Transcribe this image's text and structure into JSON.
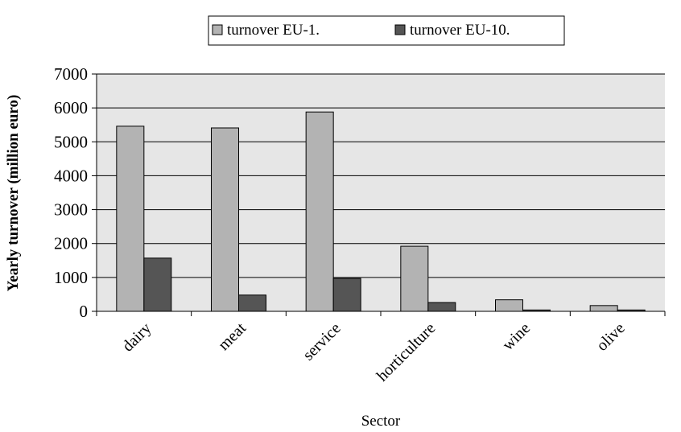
{
  "chart_data": {
    "type": "bar",
    "title": "",
    "xlabel": "Sector",
    "ylabel": "Yearly turnover (million euro)",
    "categories": [
      "dairy",
      "meat",
      "service",
      "horticulture",
      "wine",
      "olive"
    ],
    "ylim": [
      0,
      7000
    ],
    "yticks": [
      0,
      1000,
      2000,
      3000,
      4000,
      5000,
      6000,
      7000
    ],
    "grid": true,
    "legend_position": "top-center",
    "series": [
      {
        "name": "turnover EU-1.",
        "color": "#b3b3b3",
        "values": [
          5460,
          5410,
          5880,
          1920,
          340,
          170
        ]
      },
      {
        "name": "turnover EU-10.",
        "color": "#555555",
        "values": [
          1570,
          480,
          970,
          260,
          40,
          40
        ]
      }
    ]
  }
}
